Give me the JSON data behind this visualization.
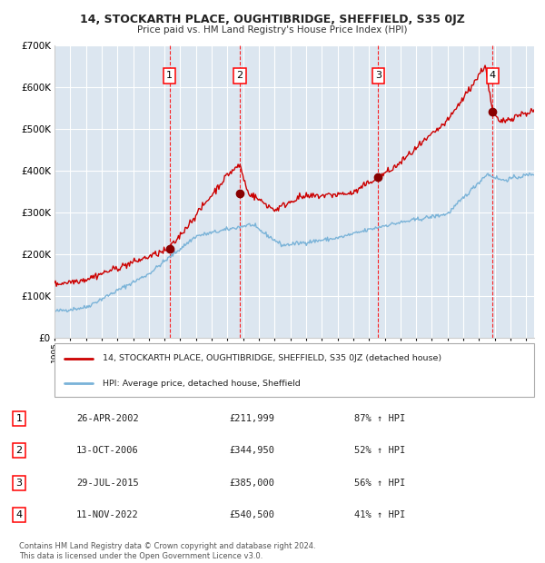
{
  "title": "14, STOCKARTH PLACE, OUGHTIBRIDGE, SHEFFIELD, S35 0JZ",
  "subtitle": "Price paid vs. HM Land Registry's House Price Index (HPI)",
  "bg_color": "#dce6f0",
  "fig_color": "#ffffff",
  "grid_color": "#ffffff",
  "transactions": [
    {
      "num": 1,
      "date": "26-APR-2002",
      "date_x": 2002.32,
      "price": 211999,
      "pct": "87%",
      "dir": "↑"
    },
    {
      "num": 2,
      "date": "13-OCT-2006",
      "date_x": 2006.79,
      "price": 344950,
      "pct": "52%",
      "dir": "↑"
    },
    {
      "num": 3,
      "date": "29-JUL-2015",
      "date_x": 2015.58,
      "price": 385000,
      "pct": "56%",
      "dir": "↑"
    },
    {
      "num": 4,
      "date": "11-NOV-2022",
      "date_x": 2022.87,
      "price": 540500,
      "pct": "41%",
      "dir": "↑"
    }
  ],
  "legend_line1": "14, STOCKARTH PLACE, OUGHTIBRIDGE, SHEFFIELD, S35 0JZ (detached house)",
  "legend_line2": "HPI: Average price, detached house, Sheffield",
  "footer_line1": "Contains HM Land Registry data © Crown copyright and database right 2024.",
  "footer_line2": "This data is licensed under the Open Government Licence v3.0.",
  "hpi_color": "#7ab3d8",
  "price_color": "#cc0000",
  "marker_color": "#880000",
  "xmin": 1995,
  "xmax": 2025.5,
  "ymin": 0,
  "ymax": 700000,
  "yticks": [
    0,
    100000,
    200000,
    300000,
    400000,
    500000,
    600000,
    700000
  ]
}
